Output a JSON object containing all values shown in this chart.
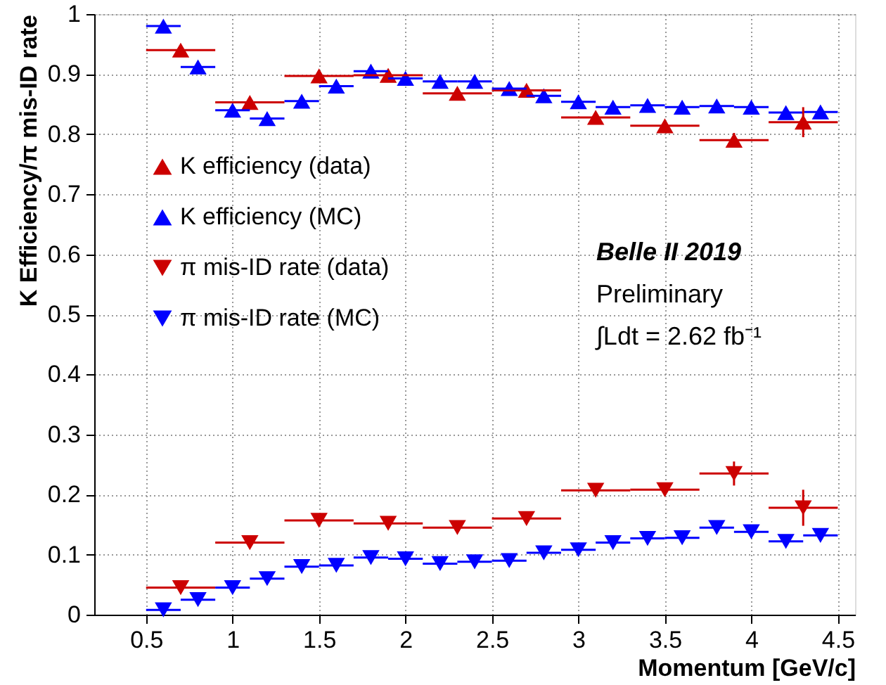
{
  "chart_data": {
    "type": "scatter",
    "xlabel": "Momentum [GeV/c]",
    "ylabel": "K Efficiency/π mis-ID rate",
    "xlim": [
      0.2,
      4.6
    ],
    "ylim": [
      0,
      1
    ],
    "xticks": [
      0.5,
      1,
      1.5,
      2,
      2.5,
      3,
      3.5,
      4,
      4.5
    ],
    "yticks": [
      0,
      0.1,
      0.2,
      0.3,
      0.4,
      0.5,
      0.6,
      0.7,
      0.8,
      0.9,
      1
    ],
    "grid": true,
    "legend": "left",
    "line_style": "dotted",
    "annotations": [
      "Belle II 2019",
      "Preliminary",
      "∫Ldt = 2.62 fb⁻¹"
    ],
    "series": [
      {
        "name": "K efficiency (data)",
        "color": "#cc0000",
        "marker": "triangle",
        "x": [
          0.7,
          1.1,
          1.5,
          1.9,
          2.3,
          2.7,
          3.1,
          3.5,
          3.9,
          4.3
        ],
        "values": [
          0.94,
          0.853,
          0.897,
          0.898,
          0.868,
          0.873,
          0.828,
          0.814,
          0.79,
          0.82
        ],
        "xerrors": [
          0.2,
          0.2,
          0.2,
          0.2,
          0.2,
          0.2,
          0.2,
          0.2,
          0.2,
          0.2
        ],
        "errors": [
          null,
          null,
          null,
          null,
          null,
          null,
          null,
          null,
          0.012,
          0.025
        ]
      },
      {
        "name": "K efficiency (MC)",
        "color": "#0000ff",
        "marker": "triangle",
        "x": [
          0.6,
          0.8,
          1.0,
          1.2,
          1.4,
          1.6,
          1.8,
          2.0,
          2.2,
          2.4,
          2.6,
          2.8,
          3.0,
          3.2,
          3.4,
          3.6,
          3.8,
          4.0,
          4.2,
          4.4
        ],
        "values": [
          0.98,
          0.912,
          0.84,
          0.826,
          0.855,
          0.88,
          0.905,
          0.893,
          0.888,
          0.888,
          0.876,
          0.864,
          0.854,
          0.845,
          0.848,
          0.845,
          0.847,
          0.845,
          0.836,
          0.837
        ],
        "xerrors": [
          0.1,
          0.1,
          0.1,
          0.1,
          0.1,
          0.1,
          0.1,
          0.1,
          0.1,
          0.1,
          0.1,
          0.1,
          0.1,
          0.1,
          0.1,
          0.1,
          0.1,
          0.1,
          0.1,
          0.1
        ]
      },
      {
        "name": "π mis-ID rate (data)",
        "color": "#cc0000",
        "marker": "triangle-down",
        "x": [
          0.7,
          1.1,
          1.5,
          1.9,
          2.3,
          2.7,
          3.1,
          3.5,
          3.9,
          4.3
        ],
        "values": [
          0.045,
          0.12,
          0.157,
          0.152,
          0.145,
          0.16,
          0.207,
          0.208,
          0.235,
          0.178
        ],
        "xerrors": [
          0.2,
          0.2,
          0.2,
          0.2,
          0.2,
          0.2,
          0.2,
          0.2,
          0.2,
          0.2
        ],
        "errors": [
          null,
          null,
          null,
          null,
          null,
          null,
          null,
          0.01,
          0.02,
          0.03
        ]
      },
      {
        "name": "π mis-ID rate (MC)",
        "color": "#0000ff",
        "marker": "triangle-down",
        "x": [
          0.6,
          0.8,
          1.0,
          1.2,
          1.4,
          1.6,
          1.8,
          2.0,
          2.2,
          2.4,
          2.6,
          2.8,
          3.0,
          3.2,
          3.4,
          3.6,
          3.8,
          4.0,
          4.2,
          4.4
        ],
        "values": [
          0.008,
          0.025,
          0.045,
          0.06,
          0.08,
          0.082,
          0.095,
          0.093,
          0.085,
          0.088,
          0.09,
          0.103,
          0.108,
          0.12,
          0.127,
          0.128,
          0.145,
          0.138,
          0.122,
          0.132
        ],
        "xerrors": [
          0.1,
          0.1,
          0.1,
          0.1,
          0.1,
          0.1,
          0.1,
          0.1,
          0.1,
          0.1,
          0.1,
          0.1,
          0.1,
          0.1,
          0.1,
          0.1,
          0.1,
          0.1,
          0.1,
          0.1
        ]
      }
    ]
  }
}
